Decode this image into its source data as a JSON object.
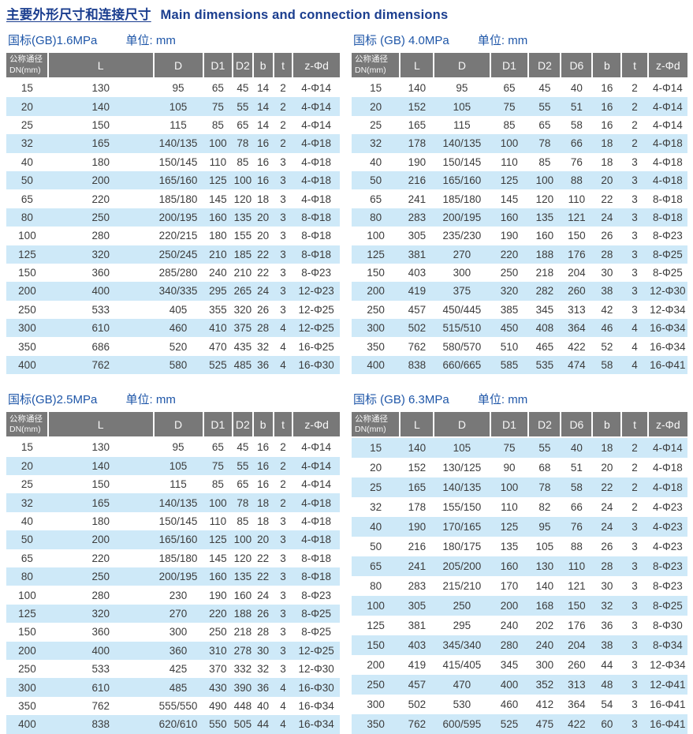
{
  "page": {
    "title_zh": "主要外形尺寸和连接尺寸",
    "title_en": "Main dimensions and connection dimensions"
  },
  "tables": [
    {
      "label": "国标(GB)1.6MPa",
      "unit": "单位: mm",
      "columns": [
        "公称通径\nDN(mm)",
        "L",
        "D",
        "D1",
        "D2",
        "b",
        "t",
        "z-Φd"
      ],
      "rows": [
        [
          "15",
          "130",
          "95",
          "65",
          "45",
          "14",
          "2",
          "4-Φ14"
        ],
        [
          "20",
          "140",
          "105",
          "75",
          "55",
          "14",
          "2",
          "4-Φ14"
        ],
        [
          "25",
          "150",
          "115",
          "85",
          "65",
          "14",
          "2",
          "4-Φ14"
        ],
        [
          "32",
          "165",
          "140/135",
          "100",
          "78",
          "16",
          "2",
          "4-Φ18"
        ],
        [
          "40",
          "180",
          "150/145",
          "110",
          "85",
          "16",
          "3",
          "4-Φ18"
        ],
        [
          "50",
          "200",
          "165/160",
          "125",
          "100",
          "16",
          "3",
          "4-Φ18"
        ],
        [
          "65",
          "220",
          "185/180",
          "145",
          "120",
          "18",
          "3",
          "4-Φ18"
        ],
        [
          "80",
          "250",
          "200/195",
          "160",
          "135",
          "20",
          "3",
          "8-Φ18"
        ],
        [
          "100",
          "280",
          "220/215",
          "180",
          "155",
          "20",
          "3",
          "8-Φ18"
        ],
        [
          "125",
          "320",
          "250/245",
          "210",
          "185",
          "22",
          "3",
          "8-Φ18"
        ],
        [
          "150",
          "360",
          "285/280",
          "240",
          "210",
          "22",
          "3",
          "8-Φ23"
        ],
        [
          "200",
          "400",
          "340/335",
          "295",
          "265",
          "24",
          "3",
          "12-Φ23"
        ],
        [
          "250",
          "533",
          "405",
          "355",
          "320",
          "26",
          "3",
          "12-Φ25"
        ],
        [
          "300",
          "610",
          "460",
          "410",
          "375",
          "28",
          "4",
          "12-Φ25"
        ],
        [
          "350",
          "686",
          "520",
          "470",
          "435",
          "32",
          "4",
          "16-Φ25"
        ],
        [
          "400",
          "762",
          "580",
          "525",
          "485",
          "36",
          "4",
          "16-Φ30"
        ]
      ]
    },
    {
      "label": "国标 (GB) 4.0MPa",
      "unit": "单位: mm",
      "columns": [
        "公称通径\nDN(mm)",
        "L",
        "D",
        "D1",
        "D2",
        "D6",
        "b",
        "t",
        "z-Φd"
      ],
      "rows": [
        [
          "15",
          "140",
          "95",
          "65",
          "45",
          "40",
          "16",
          "2",
          "4-Φ14"
        ],
        [
          "20",
          "152",
          "105",
          "75",
          "55",
          "51",
          "16",
          "2",
          "4-Φ14"
        ],
        [
          "25",
          "165",
          "115",
          "85",
          "65",
          "58",
          "16",
          "2",
          "4-Φ14"
        ],
        [
          "32",
          "178",
          "140/135",
          "100",
          "78",
          "66",
          "18",
          "2",
          "4-Φ18"
        ],
        [
          "40",
          "190",
          "150/145",
          "110",
          "85",
          "76",
          "18",
          "3",
          "4-Φ18"
        ],
        [
          "50",
          "216",
          "165/160",
          "125",
          "100",
          "88",
          "20",
          "3",
          "4-Φ18"
        ],
        [
          "65",
          "241",
          "185/180",
          "145",
          "120",
          "110",
          "22",
          "3",
          "8-Φ18"
        ],
        [
          "80",
          "283",
          "200/195",
          "160",
          "135",
          "121",
          "24",
          "3",
          "8-Φ18"
        ],
        [
          "100",
          "305",
          "235/230",
          "190",
          "160",
          "150",
          "26",
          "3",
          "8-Φ23"
        ],
        [
          "125",
          "381",
          "270",
          "220",
          "188",
          "176",
          "28",
          "3",
          "8-Φ25"
        ],
        [
          "150",
          "403",
          "300",
          "250",
          "218",
          "204",
          "30",
          "3",
          "8-Φ25"
        ],
        [
          "200",
          "419",
          "375",
          "320",
          "282",
          "260",
          "38",
          "3",
          "12-Φ30"
        ],
        [
          "250",
          "457",
          "450/445",
          "385",
          "345",
          "313",
          "42",
          "3",
          "12-Φ34"
        ],
        [
          "300",
          "502",
          "515/510",
          "450",
          "408",
          "364",
          "46",
          "4",
          "16-Φ34"
        ],
        [
          "350",
          "762",
          "580/570",
          "510",
          "465",
          "422",
          "52",
          "4",
          "16-Φ34"
        ],
        [
          "400",
          "838",
          "660/665",
          "585",
          "535",
          "474",
          "58",
          "4",
          "16-Φ41"
        ]
      ]
    },
    {
      "label": "国标(GB)2.5MPa",
      "unit": "单位: mm",
      "columns": [
        "公称通径\nDN(mm)",
        "L",
        "D",
        "D1",
        "D2",
        "b",
        "t",
        "z-Φd"
      ],
      "rows": [
        [
          "15",
          "130",
          "95",
          "65",
          "45",
          "16",
          "2",
          "4-Φ14"
        ],
        [
          "20",
          "140",
          "105",
          "75",
          "55",
          "16",
          "2",
          "4-Φ14"
        ],
        [
          "25",
          "150",
          "115",
          "85",
          "65",
          "16",
          "2",
          "4-Φ14"
        ],
        [
          "32",
          "165",
          "140/135",
          "100",
          "78",
          "18",
          "2",
          "4-Φ18"
        ],
        [
          "40",
          "180",
          "150/145",
          "110",
          "85",
          "18",
          "3",
          "4-Φ18"
        ],
        [
          "50",
          "200",
          "165/160",
          "125",
          "100",
          "20",
          "3",
          "4-Φ18"
        ],
        [
          "65",
          "220",
          "185/180",
          "145",
          "120",
          "22",
          "3",
          "8-Φ18"
        ],
        [
          "80",
          "250",
          "200/195",
          "160",
          "135",
          "22",
          "3",
          "8-Φ18"
        ],
        [
          "100",
          "280",
          "230",
          "190",
          "160",
          "24",
          "3",
          "8-Φ23"
        ],
        [
          "125",
          "320",
          "270",
          "220",
          "188",
          "26",
          "3",
          "8-Φ25"
        ],
        [
          "150",
          "360",
          "300",
          "250",
          "218",
          "28",
          "3",
          "8-Φ25"
        ],
        [
          "200",
          "400",
          "360",
          "310",
          "278",
          "30",
          "3",
          "12-Φ25"
        ],
        [
          "250",
          "533",
          "425",
          "370",
          "332",
          "32",
          "3",
          "12-Φ30"
        ],
        [
          "300",
          "610",
          "485",
          "430",
          "390",
          "36",
          "4",
          "16-Φ30"
        ],
        [
          "350",
          "762",
          "555/550",
          "490",
          "448",
          "40",
          "4",
          "16-Φ34"
        ],
        [
          "400",
          "838",
          "620/610",
          "550",
          "505",
          "44",
          "4",
          "16-Φ34"
        ]
      ]
    },
    {
      "label": "国标 (GB) 6.3MPa",
      "unit": "单位: mm",
      "columns": [
        "公称通径\nDN(mm)",
        "L",
        "D",
        "D1",
        "D2",
        "D6",
        "b",
        "t",
        "z-Φd"
      ],
      "rows": [
        [
          "15",
          "140",
          "105",
          "75",
          "55",
          "40",
          "18",
          "2",
          "4-Φ14"
        ],
        [
          "20",
          "152",
          "130/125",
          "90",
          "68",
          "51",
          "20",
          "2",
          "4-Φ18"
        ],
        [
          "25",
          "165",
          "140/135",
          "100",
          "78",
          "58",
          "22",
          "2",
          "4-Φ18"
        ],
        [
          "32",
          "178",
          "155/150",
          "110",
          "82",
          "66",
          "24",
          "2",
          "4-Φ23"
        ],
        [
          "40",
          "190",
          "170/165",
          "125",
          "95",
          "76",
          "24",
          "3",
          "4-Φ23"
        ],
        [
          "50",
          "216",
          "180/175",
          "135",
          "105",
          "88",
          "26",
          "3",
          "4-Φ23"
        ],
        [
          "65",
          "241",
          "205/200",
          "160",
          "130",
          "110",
          "28",
          "3",
          "8-Φ23"
        ],
        [
          "80",
          "283",
          "215/210",
          "170",
          "140",
          "121",
          "30",
          "3",
          "8-Φ23"
        ],
        [
          "100",
          "305",
          "250",
          "200",
          "168",
          "150",
          "32",
          "3",
          "8-Φ25"
        ],
        [
          "125",
          "381",
          "295",
          "240",
          "202",
          "176",
          "36",
          "3",
          "8-Φ30"
        ],
        [
          "150",
          "403",
          "345/340",
          "280",
          "240",
          "204",
          "38",
          "3",
          "8-Φ34"
        ],
        [
          "200",
          "419",
          "415/405",
          "345",
          "300",
          "260",
          "44",
          "3",
          "12-Φ34"
        ],
        [
          "250",
          "457",
          "470",
          "400",
          "352",
          "313",
          "48",
          "3",
          "12-Φ41"
        ],
        [
          "300",
          "502",
          "530",
          "460",
          "412",
          "364",
          "54",
          "3",
          "16-Φ41"
        ],
        [
          "350",
          "762",
          "600/595",
          "525",
          "475",
          "422",
          "60",
          "3",
          "16-Φ41"
        ]
      ]
    }
  ]
}
